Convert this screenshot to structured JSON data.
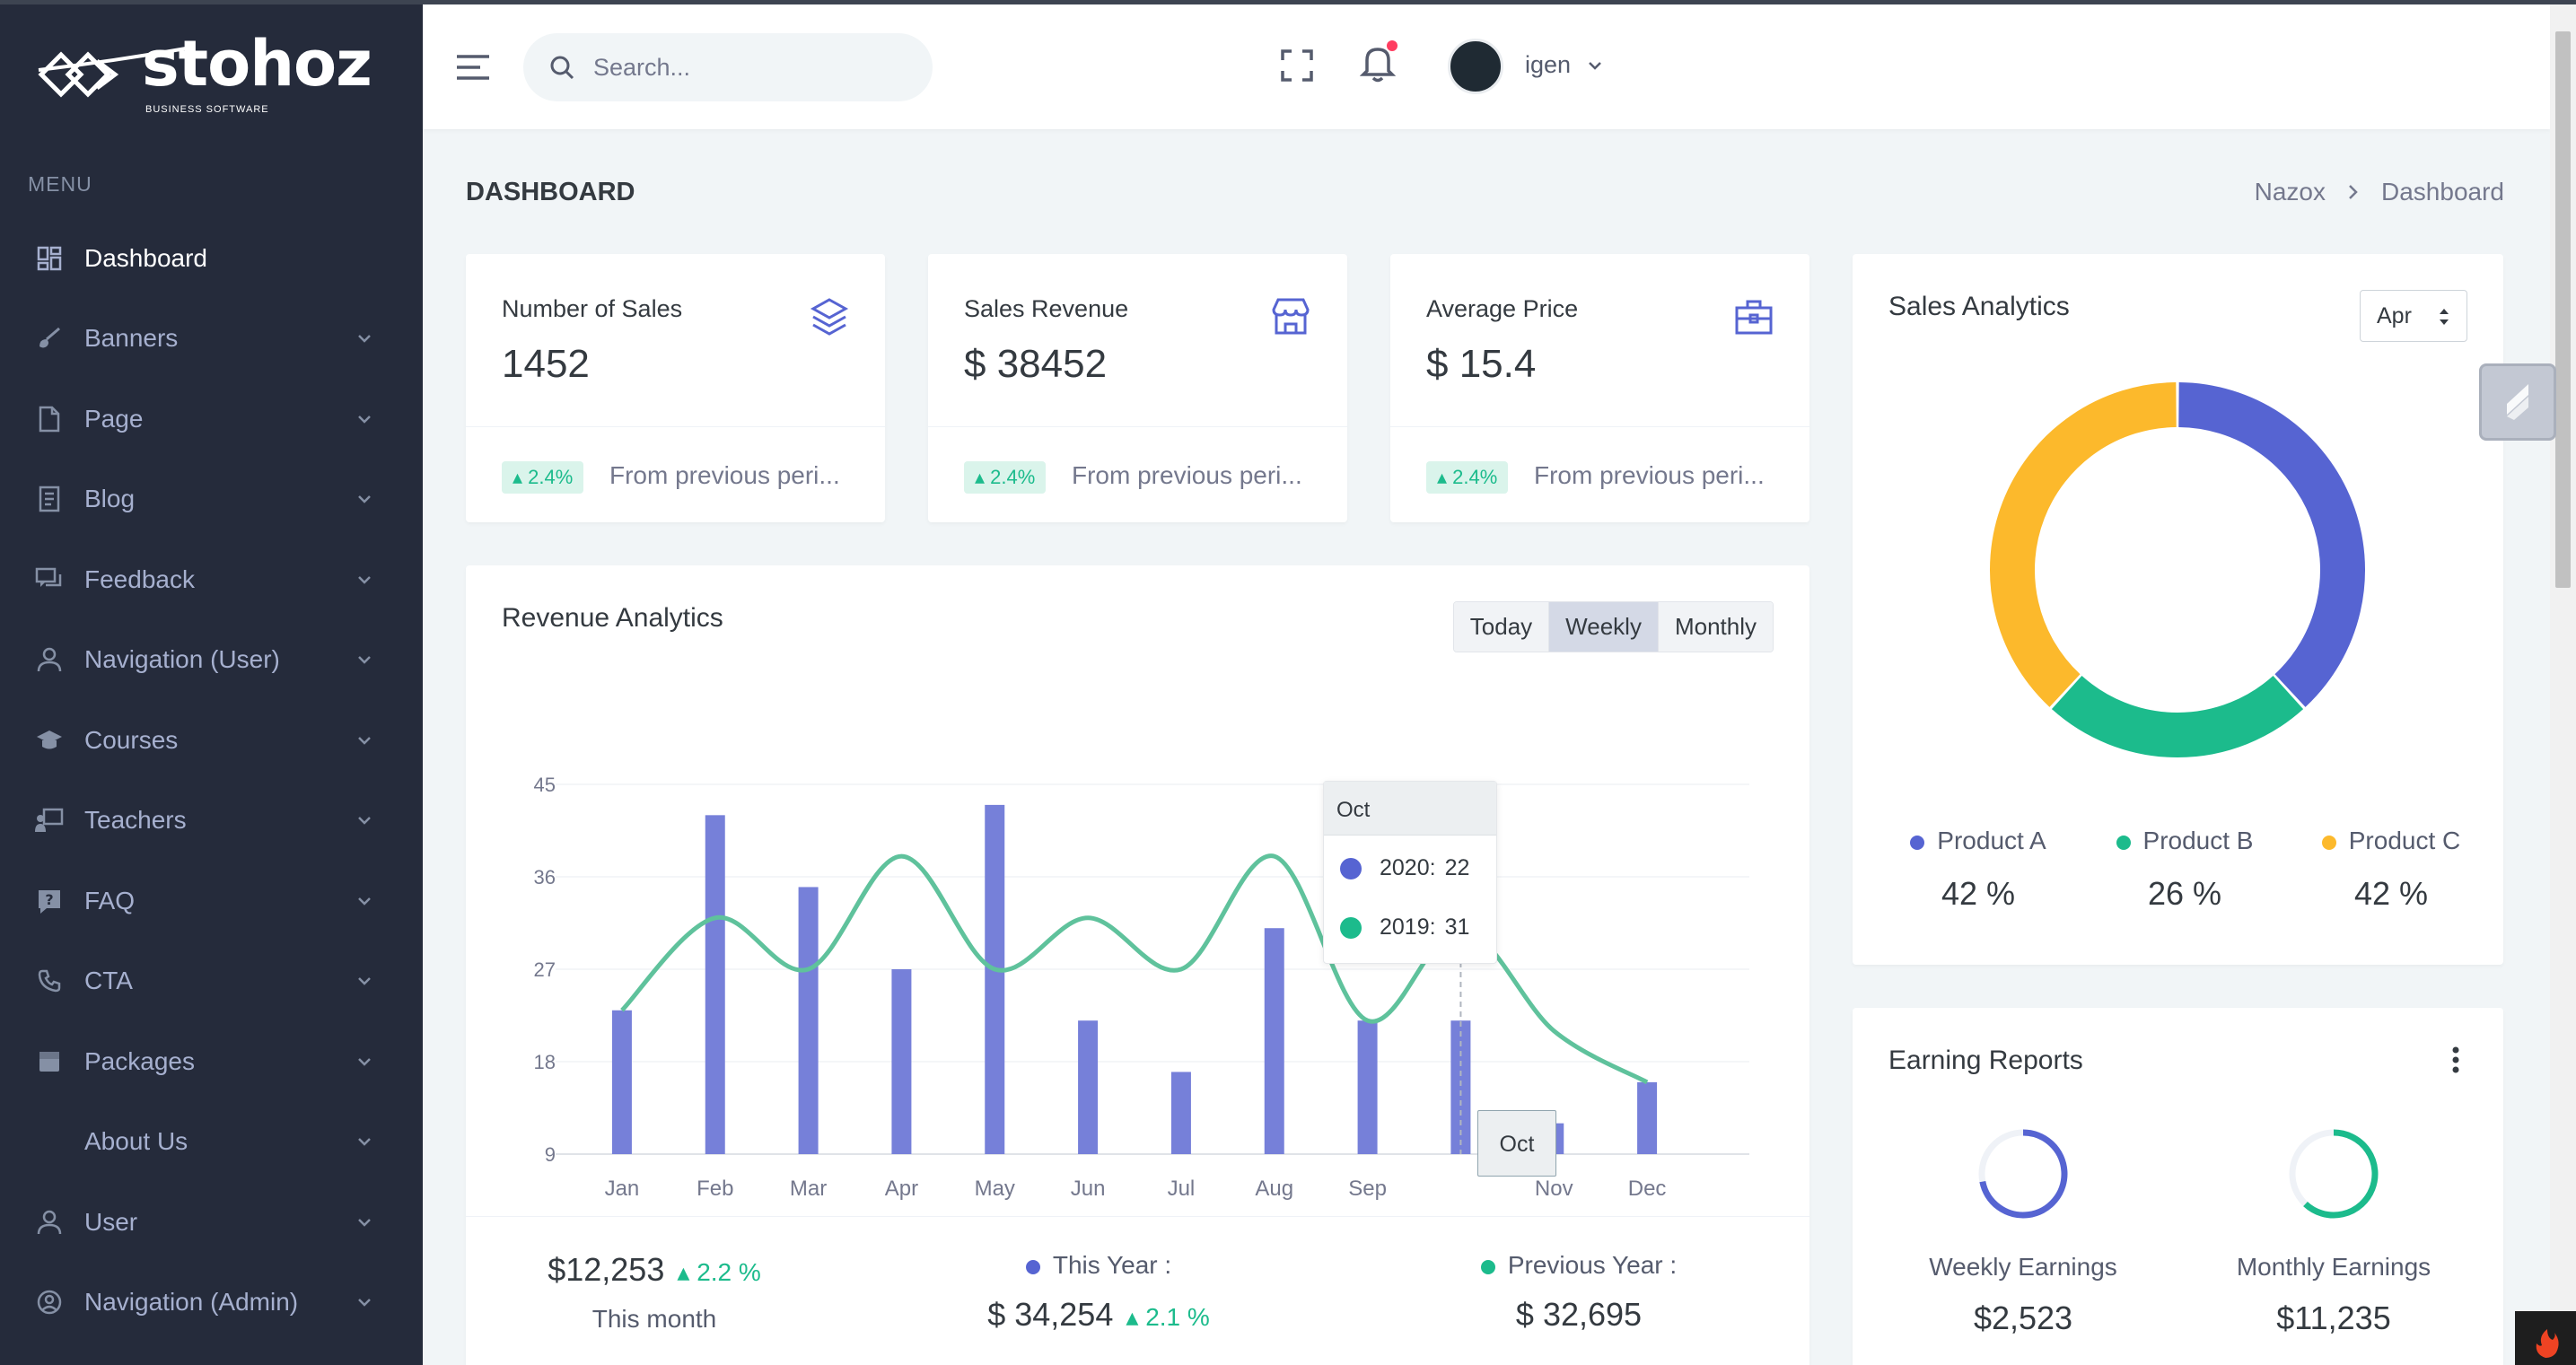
{
  "brand": {
    "name": "stohoz",
    "tagline": "BUSINESS SOFTWARE"
  },
  "sidebar": {
    "menu_title": "MENU",
    "items": [
      {
        "label": "Dashboard",
        "icon": "dashboard-icon",
        "active": true
      },
      {
        "label": "Banners",
        "icon": "brush-icon"
      },
      {
        "label": "Page",
        "icon": "file-icon"
      },
      {
        "label": "Blog",
        "icon": "article-icon"
      },
      {
        "label": "Feedback",
        "icon": "chat-icon"
      },
      {
        "label": "Navigation (User)",
        "icon": "user-icon"
      },
      {
        "label": "Courses",
        "icon": "graduation-cap-icon"
      },
      {
        "label": "Teachers",
        "icon": "presentation-icon"
      },
      {
        "label": "FAQ",
        "icon": "question-icon"
      },
      {
        "label": "CTA",
        "icon": "phone-icon"
      },
      {
        "label": "Packages",
        "icon": "package-icon"
      },
      {
        "label": "About Us",
        "icon": ""
      },
      {
        "label": "User",
        "icon": "user-icon"
      },
      {
        "label": "Navigation (Admin)",
        "icon": "user-circle-icon"
      }
    ]
  },
  "header": {
    "search_placeholder": "Search...",
    "username": "igen"
  },
  "page": {
    "title": "DASHBOARD",
    "breadcrumb": [
      "Nazox",
      "Dashboard"
    ]
  },
  "stats": [
    {
      "label": "Number of Sales",
      "value": "1452",
      "icon": "layers-icon",
      "badge": "2.4%",
      "foot": "From previous peri..."
    },
    {
      "label": "Sales Revenue",
      "value": "$ 38452",
      "icon": "store-icon",
      "badge": "2.4%",
      "foot": "From previous peri..."
    },
    {
      "label": "Average Price",
      "value": "$ 15.4",
      "icon": "briefcase-icon",
      "badge": "2.4%",
      "foot": "From previous peri..."
    }
  ],
  "revenue": {
    "title": "Revenue Analytics",
    "buttons": [
      "Today",
      "Weekly",
      "Monthly"
    ],
    "active_button": "Weekly",
    "footer": {
      "month_value": "$12,253",
      "month_change": "2.2 %",
      "month_label": "This month",
      "this_year_label": "This Year :",
      "this_year_value": "$ 34,254",
      "this_year_change": "2.1 %",
      "prev_year_label": "Previous Year :",
      "prev_year_value": "$ 32,695"
    },
    "tooltip": {
      "category": "Oct",
      "rows": [
        {
          "name": "2020:",
          "value": "22",
          "color": "#5664d2"
        },
        {
          "name": "2019:",
          "value": "31",
          "color": "#1cbb8c"
        }
      ]
    },
    "xaxis_tooltip": "Oct"
  },
  "chart_data": {
    "type": "bar",
    "categories": [
      "Jan",
      "Feb",
      "Mar",
      "Apr",
      "May",
      "Jun",
      "Jul",
      "Aug",
      "Sep",
      "Oct",
      "Nov",
      "Dec"
    ],
    "series": [
      {
        "name": "2020",
        "type": "bar",
        "color": "#5664d2",
        "values": [
          23,
          42,
          35,
          27,
          43,
          22,
          17,
          31,
          22,
          22,
          12,
          16
        ]
      },
      {
        "name": "2019",
        "type": "line",
        "color": "#1cbb8c",
        "values": [
          23,
          32,
          27,
          38,
          27,
          32,
          27,
          38,
          22,
          31,
          21,
          16
        ]
      }
    ],
    "yticks": [
      9,
      18,
      27,
      36,
      45
    ],
    "ylim": [
      9,
      45
    ]
  },
  "sales_analytics": {
    "title": "Sales Analytics",
    "month": "Apr",
    "donut": [
      {
        "name": "Product A",
        "percent": 42,
        "color": "#5664d2"
      },
      {
        "name": "Product B",
        "percent": 26,
        "color": "#1cbb8c"
      },
      {
        "name": "Product C",
        "percent": 42,
        "color": "#fcb92c"
      }
    ],
    "legend": [
      {
        "name": "Product A",
        "value": "42 %",
        "color": "#5664d2"
      },
      {
        "name": "Product B",
        "value": "26 %",
        "color": "#1cbb8c"
      },
      {
        "name": "Product C",
        "value": "42 %",
        "color": "#fcb92c"
      }
    ]
  },
  "earning_reports": {
    "title": "Earning Reports",
    "items": [
      {
        "label": "Weekly Earnings",
        "value": "$2,523",
        "progress": 0.72,
        "color": "#5664d2"
      },
      {
        "label": "Monthly Earnings",
        "value": "$11,235",
        "progress": 0.62,
        "color": "#1cbb8c"
      }
    ]
  }
}
